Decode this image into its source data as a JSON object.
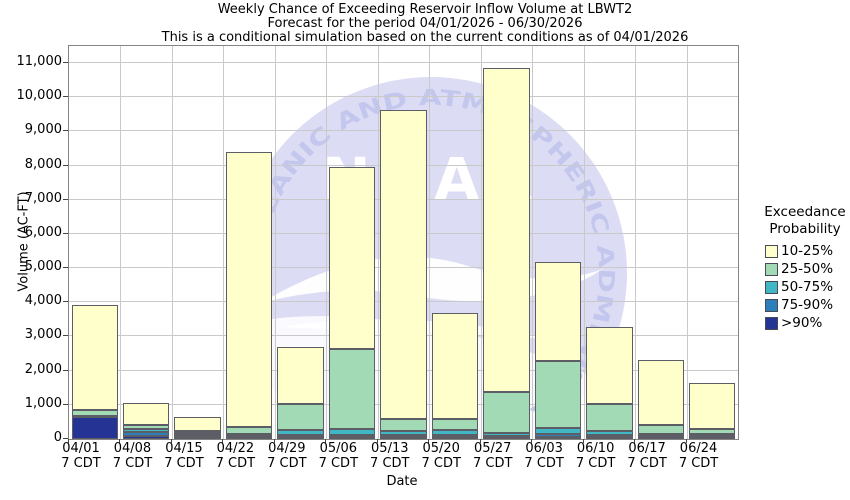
{
  "title": {
    "line1": "Weekly Chance of Exceeding Reservoir Inflow Volume at LBWT2",
    "line2": "Forecast for the period 04/01/2026 - 06/30/2026",
    "line3": "This is a conditional simulation based on the current conditions as of 04/01/2026"
  },
  "axes": {
    "y_label": "Volume (AC-FT)",
    "x_label": "Date",
    "y_ticks": [
      "0",
      "1,000",
      "2,000",
      "3,000",
      "4,000",
      "5,000",
      "6,000",
      "7,000",
      "8,000",
      "9,000",
      "10,000",
      "11,000"
    ],
    "x_sublabel": "7 CDT"
  },
  "legend": {
    "title_line1": "Exceedance",
    "title_line2": "Probability",
    "items": [
      {
        "label": "10-25%",
        "color": "#FFFFCC"
      },
      {
        "label": "25-50%",
        "color": "#A1DAB4"
      },
      {
        "label": "50-75%",
        "color": "#41B6C4"
      },
      {
        "label": "75-90%",
        "color": "#2C7FB8"
      },
      {
        "label": ">90%",
        "color": "#253494"
      }
    ]
  },
  "watermark": {
    "arc_text": "EANIC AND ATMOSPHERIC ADMINISTRATI",
    "center_text": "NOAA"
  },
  "chart_data": {
    "type": "bar",
    "stacked": true,
    "title": "Weekly Chance of Exceeding Reservoir Inflow Volume at LBWT2",
    "xlabel": "Date",
    "ylabel": "Volume (AC-FT)",
    "ylim": [
      0,
      11500
    ],
    "y_tick_step": 1000,
    "grid": true,
    "legend_position": "right",
    "categories": [
      "04/01",
      "04/08",
      "04/15",
      "04/22",
      "04/29",
      "05/06",
      "05/13",
      "05/20",
      "05/27",
      "06/03",
      "06/10",
      "06/17",
      "06/24"
    ],
    "series": [
      {
        "name": ">90%",
        "color": "#253494",
        "values": [
          640,
          100,
          70,
          40,
          50,
          50,
          60,
          50,
          40,
          60,
          50,
          40,
          40
        ]
      },
      {
        "name": "75-90%",
        "color": "#2C7FB8",
        "values": [
          10,
          100,
          60,
          50,
          80,
          80,
          60,
          60,
          60,
          100,
          70,
          60,
          50
        ]
      },
      {
        "name": "50-75%",
        "color": "#41B6C4",
        "values": [
          10,
          80,
          50,
          60,
          140,
          160,
          110,
          140,
          90,
          150,
          120,
          60,
          60
        ]
      },
      {
        "name": "25-50%",
        "color": "#A1DAB4",
        "values": [
          190,
          140,
          60,
          210,
          760,
          2350,
          350,
          350,
          1190,
          1980,
          790,
          250,
          140
        ]
      },
      {
        "name": "10-25%",
        "color": "#FFFFCC",
        "values": [
          3070,
          630,
          400,
          8040,
          1650,
          5310,
          9050,
          3080,
          9470,
          2880,
          2240,
          1910,
          1350
        ]
      }
    ],
    "totals": [
      3920,
      1050,
      640,
      8400,
      2680,
      7950,
      9630,
      3680,
      10850,
      5170,
      3270,
      2320,
      1640
    ]
  }
}
